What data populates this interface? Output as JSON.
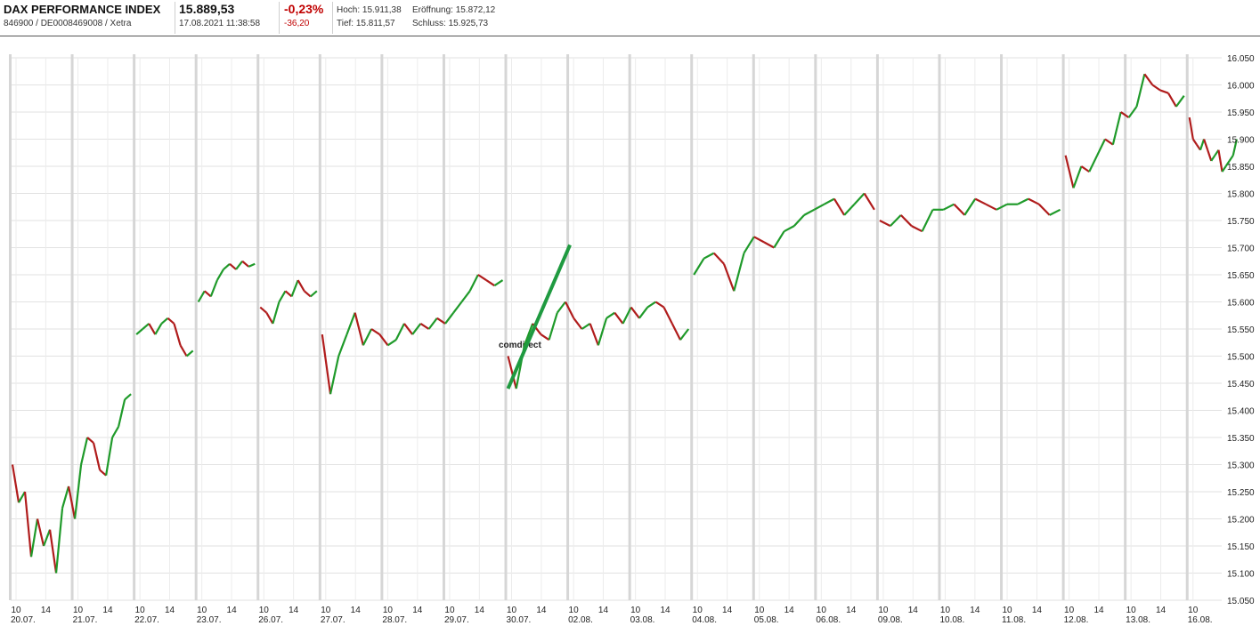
{
  "header": {
    "name": "DAX PERFORMANCE INDEX",
    "ids": "846900 / DE0008469008 / Xetra",
    "price": "15.889,53",
    "datetime": "17.08.2021 11:38:58",
    "change_pct": "-0,23%",
    "change_abs": "-36,20",
    "hoch_label": "Hoch:",
    "hoch_value": "15.911,38",
    "tief_label": "Tief:",
    "tief_value": "15.811,57",
    "eroeffnung_label": "Eröffnung:",
    "eroeffnung_value": "15.872,12",
    "schluss_label": "Schluss:",
    "schluss_value": "15.925,73",
    "negative_color": "#c00000"
  },
  "watermark": "comdirect",
  "chart_data": {
    "type": "line",
    "title": "",
    "xlabel": "",
    "ylabel": "",
    "ylim": [
      15050,
      16050
    ],
    "y_ticks": [
      "15.050",
      "15.100",
      "15.150",
      "15.200",
      "15.250",
      "15.300",
      "15.350",
      "15.400",
      "15.450",
      "15.500",
      "15.550",
      "15.600",
      "15.650",
      "15.700",
      "15.750",
      "15.800",
      "15.850",
      "15.900",
      "15.950",
      "16.000",
      "16.050"
    ],
    "grid": true,
    "days": [
      "20.07.",
      "21.07.",
      "22.07.",
      "23.07.",
      "26.07.",
      "27.07.",
      "28.07.",
      "29.07.",
      "30.07.",
      "02.08.",
      "03.08.",
      "04.08.",
      "05.08.",
      "06.08.",
      "09.08.",
      "10.08.",
      "11.08.",
      "12.08.",
      "13.08.",
      "16.08."
    ],
    "hour_ticks": [
      "10",
      "14"
    ],
    "last_day_hour_ticks": [
      "10"
    ],
    "series": [
      {
        "values": [
          [
            15300,
            15230,
            15250,
            15130,
            15200,
            15150,
            15180,
            15100,
            15220,
            15260,
            15200,
            15300,
            15350,
            15340,
            15290,
            15280,
            15350,
            15370,
            15420,
            15430
          ],
          [
            15540,
            15550,
            15560,
            15540,
            15560,
            15570,
            15560,
            15520,
            15500,
            15510
          ],
          [
            15600,
            15620,
            15610,
            15640,
            15660,
            15670,
            15660,
            15675,
            15665,
            15670
          ],
          [
            15590,
            15580,
            15560,
            15600,
            15620,
            15610,
            15640,
            15620,
            15610,
            15620
          ],
          [
            15540,
            15430,
            15500,
            15540,
            15580,
            15520,
            15550,
            15540,
            15520,
            15530,
            15560,
            15540,
            15560,
            15550,
            15570,
            15560,
            15580,
            15600,
            15620,
            15650,
            15640,
            15630,
            15640
          ],
          [
            15500,
            15440,
            15520,
            15560,
            15540,
            15530,
            15580,
            15600,
            15570,
            15550,
            15560,
            15520,
            15570,
            15580,
            15560,
            15590,
            15570,
            15590,
            15600,
            15590,
            15560,
            15530,
            15550
          ],
          [
            15650,
            15680,
            15690,
            15670,
            15620,
            15690,
            15720,
            15710,
            15700,
            15730,
            15740,
            15760,
            15770,
            15780,
            15790,
            15760,
            15780,
            15800,
            15770
          ],
          [
            15750,
            15740,
            15760,
            15740,
            15730,
            15770,
            15770,
            15780,
            15760,
            15790,
            15780,
            15770,
            15780,
            15780,
            15790,
            15780,
            15760,
            15770
          ],
          [
            15870,
            15810,
            15850,
            15840,
            15870,
            15900,
            15890,
            15950,
            15940,
            15960,
            16020,
            16000,
            15990,
            15985,
            15960,
            15980
          ],
          [
            15940,
            15900,
            15890,
            15880,
            15900,
            15880,
            15860,
            15870,
            15880,
            15840,
            15850,
            15860,
            15870,
            15900
          ]
        ]
      }
    ],
    "drawn_line": [
      [
        15440,
        15705
      ]
    ],
    "colors": {
      "up": "#1f9a2a",
      "down": "#b01c1c",
      "trendline": "#1f9a40"
    }
  }
}
